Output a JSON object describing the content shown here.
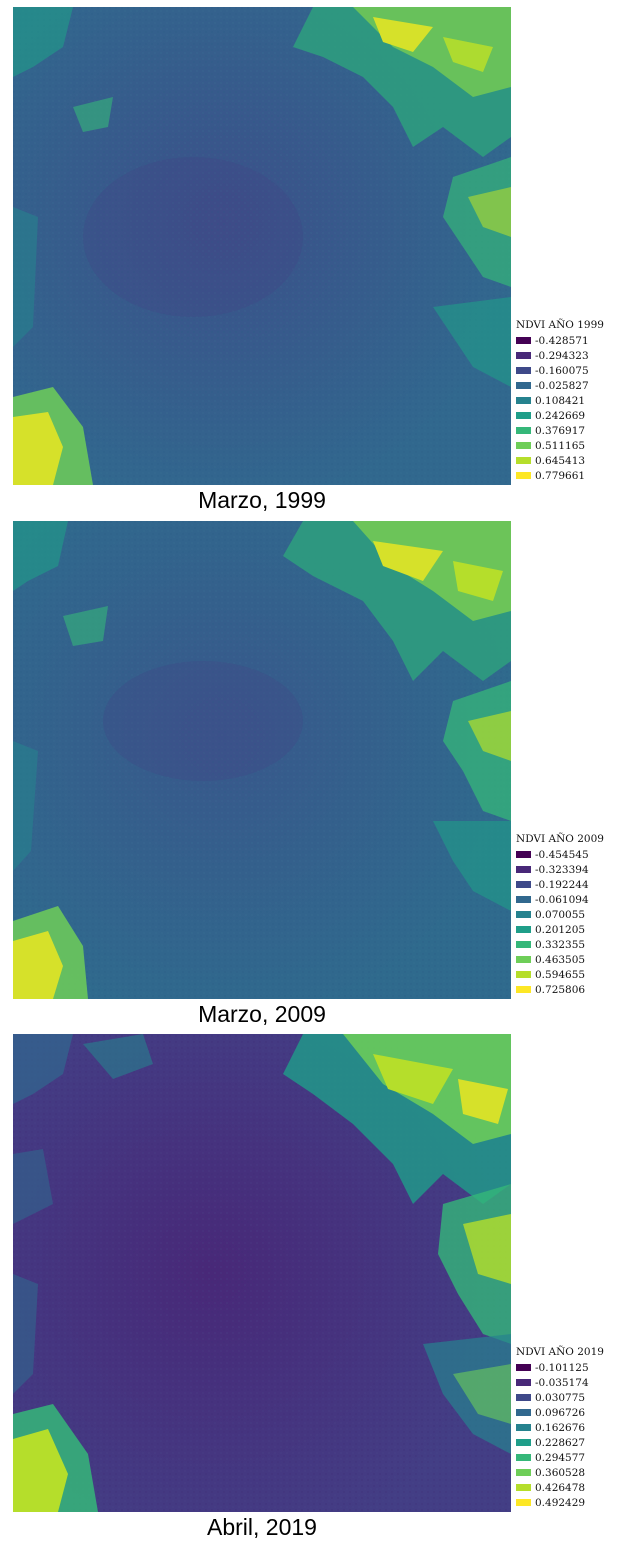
{
  "panels": [
    {
      "caption": "Marzo, 1999",
      "legend": {
        "title": "NDVI AÑO 1999",
        "items": [
          "-0.428571",
          "-0.294323",
          "-0.160075",
          "-0.025827",
          "0.108421",
          "0.242669",
          "0.376917",
          "0.511165",
          "0.645413",
          "0.779661"
        ]
      }
    },
    {
      "caption": "Marzo, 2009",
      "legend": {
        "title": "NDVI AÑO 2009",
        "items": [
          "-0.454545",
          "-0.323394",
          "-0.192244",
          "-0.061094",
          "0.070055",
          "0.201205",
          "0.332355",
          "0.463505",
          "0.594655",
          "0.725806"
        ]
      }
    },
    {
      "caption": "Abril, 2019",
      "legend": {
        "title": "NDVI AÑO 2019",
        "items": [
          "-0.101125",
          "-0.035174",
          "0.030775",
          "0.096726",
          "0.162676",
          "0.228627",
          "0.294577",
          "0.360528",
          "0.426478",
          "0.492429"
        ]
      }
    }
  ],
  "palette": [
    "#440154",
    "#482878",
    "#3e4989",
    "#31688e",
    "#26828e",
    "#1f9e89",
    "#35b779",
    "#6ece58",
    "#b5de2b",
    "#fde725"
  ],
  "map_base_colors": [
    "#31688e",
    "#33638d",
    "#433e85"
  ]
}
